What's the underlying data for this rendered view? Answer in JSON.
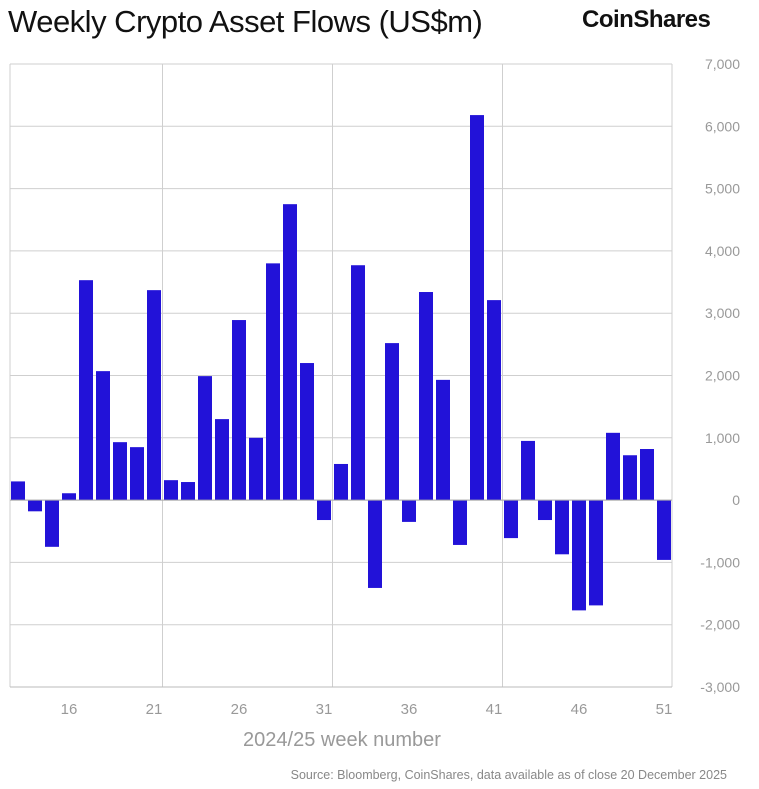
{
  "chart_data": {
    "type": "bar",
    "title": "Weekly Crypto Asset Flows (US$m)",
    "xlabel": "2024/25 week number",
    "ylabel": "",
    "ylim": [
      -3000,
      7000
    ],
    "yticks": [
      "7,000",
      "6,000",
      "5,000",
      "4,000",
      "3,000",
      "2,000",
      "1,000",
      "0",
      "-1,000",
      "-2,000",
      "-3,000"
    ],
    "ytick_values": [
      7000,
      6000,
      5000,
      4000,
      3000,
      2000,
      1000,
      0,
      -1000,
      -2000,
      -3000
    ],
    "xticks": [
      "16",
      "21",
      "26",
      "31",
      "36",
      "41",
      "46",
      "51"
    ],
    "grid": true,
    "bar_color": "#2212d8",
    "categories": [
      13,
      14,
      15,
      16,
      17,
      18,
      19,
      20,
      21,
      22,
      23,
      24,
      25,
      26,
      27,
      28,
      29,
      30,
      31,
      32,
      33,
      34,
      35,
      36,
      37,
      38,
      39,
      40,
      41,
      42,
      43,
      44,
      45,
      46,
      47,
      48,
      49,
      50,
      51
    ],
    "values": [
      300,
      -180,
      -750,
      110,
      3530,
      2070,
      930,
      850,
      3370,
      320,
      290,
      1990,
      1300,
      2890,
      1000,
      3800,
      4750,
      2200,
      -320,
      580,
      3770,
      -1410,
      2520,
      -350,
      3340,
      1930,
      -720,
      6180,
      3210,
      -610,
      950,
      -320,
      -870,
      -1770,
      -1690,
      1080,
      720,
      820,
      -960
    ]
  },
  "logo_text": "CoinShares",
  "source": "Source: Bloomberg, CoinShares, data available as of close 20 December 2025"
}
